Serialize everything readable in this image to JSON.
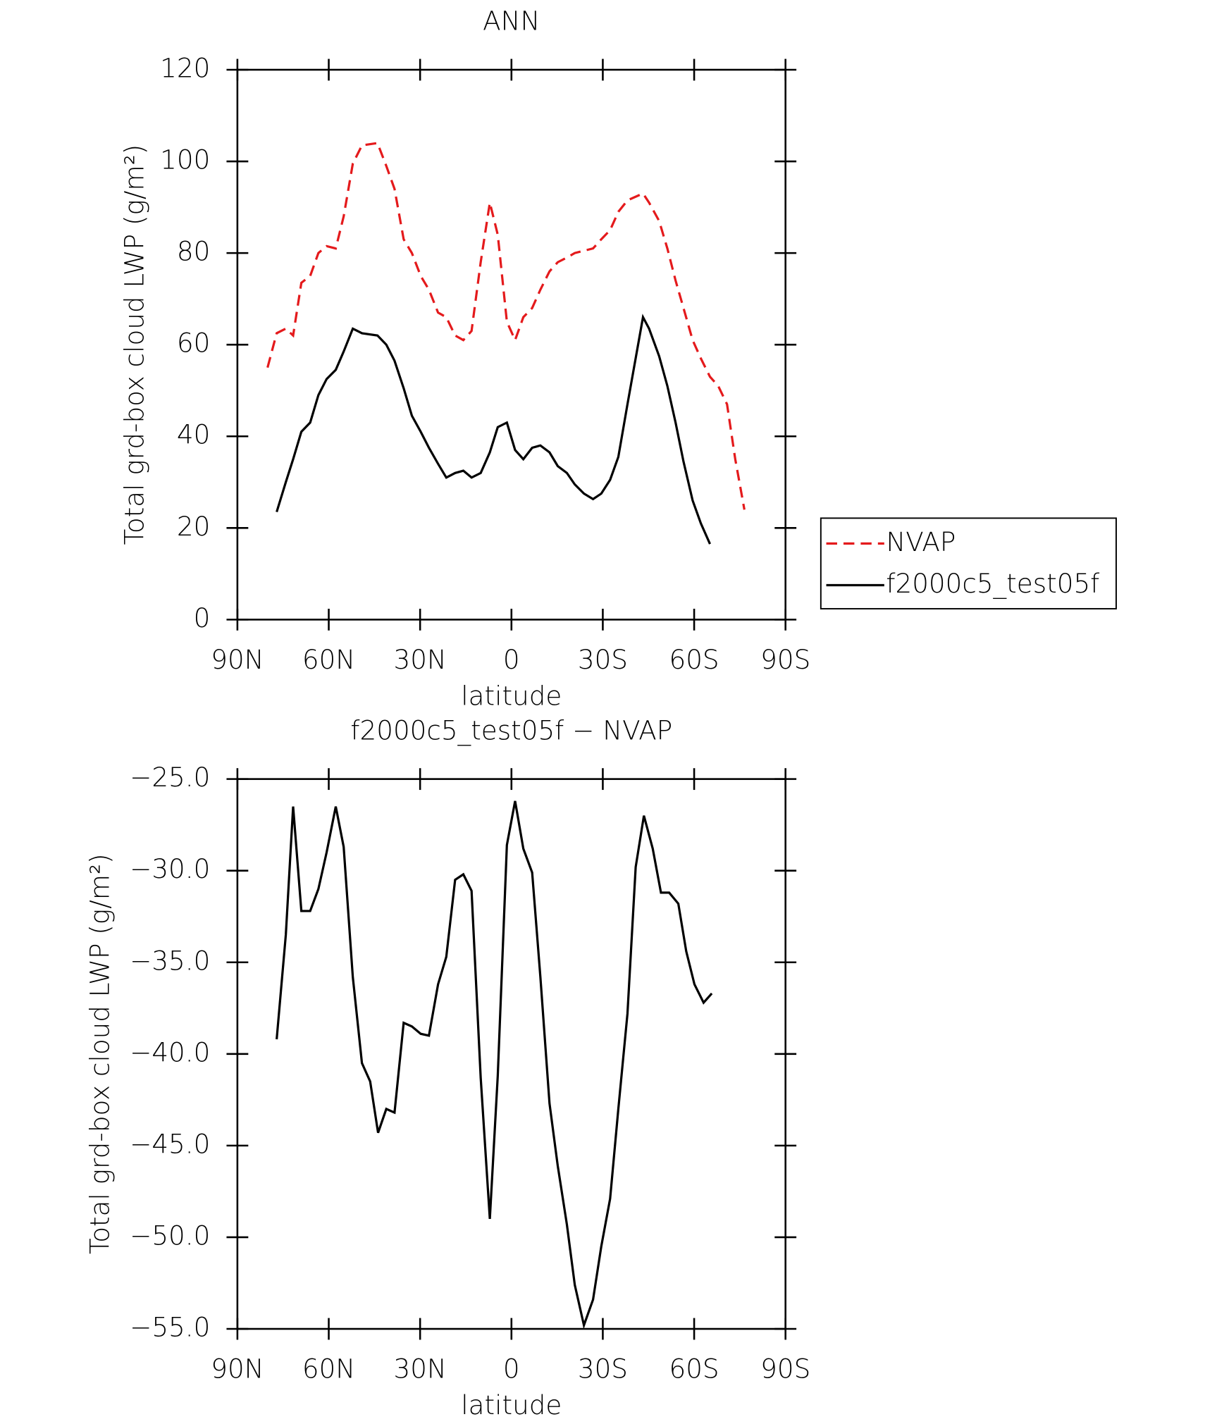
{
  "chart_data": [
    {
      "type": "line",
      "title": "ANN",
      "xlabel": "latitude",
      "ylabel": "Total grd-box cloud LWP (g/m²)",
      "x": [
        80.1,
        77.1,
        74.1,
        71.7,
        69.0,
        66.1,
        63.4,
        60.7,
        57.7,
        55.1,
        52.1,
        49.1,
        44.0,
        41.1,
        38.4,
        35.4,
        32.7,
        29.8,
        27.1,
        24.1,
        21.4,
        18.5,
        15.8,
        13.1,
        10.1,
        7.1,
        4.5,
        1.5,
        -1.2,
        -3.9,
        -6.8,
        -9.5,
        -12.5,
        -15.2,
        -18.2,
        -20.8,
        -23.8,
        -26.8,
        -29.5,
        -32.4,
        -35.1,
        -38.1,
        -43.2,
        -45.2,
        -48.5,
        -51.2,
        -53.9,
        -56.5,
        -59.5,
        -62.2,
        -65.2,
        -67.9,
        -70.8,
        -73.5,
        -76.5
      ],
      "series": [
        {
          "name": "NVAP",
          "color": "#e41a1c",
          "line_style": "dashed",
          "values": [
            55,
            62.5,
            63.5,
            62,
            73.5,
            75,
            80,
            81.5,
            81,
            88,
            99.5,
            103.5,
            104,
            99,
            94,
            83,
            80,
            75,
            72,
            67,
            66,
            62,
            61,
            63,
            78,
            91,
            84,
            65,
            61,
            66,
            68,
            72,
            76,
            78,
            79,
            80,
            80.5,
            81,
            83,
            85,
            89,
            91.5,
            93,
            91,
            87,
            81,
            74,
            68,
            61,
            57,
            53,
            51,
            47,
            35,
            24
          ]
        },
        {
          "name": "f2000c5_test05f",
          "color": "#000000",
          "line_style": "solid",
          "values": [
            null,
            23.5,
            30,
            35,
            41,
            43,
            49,
            52.5,
            54.5,
            58.5,
            63.5,
            62.5,
            62,
            60,
            56.5,
            50.5,
            44.5,
            41,
            37.5,
            34,
            31,
            32,
            32.5,
            31,
            32,
            36.5,
            42,
            43,
            37,
            35,
            37.5,
            38,
            36.5,
            33.5,
            32,
            29.5,
            27.5,
            26.3,
            27.5,
            30.5,
            35.5,
            47,
            66,
            63.5,
            57.5,
            51,
            43,
            34.5,
            26,
            21,
            16.5,
            null,
            null,
            null,
            null
          ]
        }
      ],
      "xlim": [
        90,
        -90
      ],
      "xticks": [
        {
          "value": 90,
          "label": "90N"
        },
        {
          "value": 60,
          "label": "60N"
        },
        {
          "value": 30,
          "label": "30N"
        },
        0,
        {
          "value": -30,
          "label": "30S"
        },
        {
          "value": -60,
          "label": "60S"
        },
        {
          "value": -90,
          "label": "90S"
        }
      ],
      "ylim": [
        0,
        120
      ],
      "yticks": [
        0,
        20,
        40,
        60,
        80,
        100,
        120
      ],
      "legend": "right"
    },
    {
      "type": "line",
      "title": "f2000c5_test05f − NVAP",
      "xlabel": "latitude",
      "ylabel": "Total grd-box cloud LWP (g/m²)",
      "x": [
        77.1,
        74.1,
        71.7,
        69.0,
        66.1,
        63.4,
        60.7,
        57.7,
        55.1,
        52.1,
        49.1,
        46.4,
        43.8,
        41.1,
        38.4,
        35.4,
        32.7,
        29.8,
        27.1,
        24.1,
        21.4,
        18.5,
        15.8,
        13.1,
        10.1,
        7.1,
        4.5,
        1.5,
        -1.2,
        -3.9,
        -6.8,
        -9.5,
        -12.5,
        -15.2,
        -18.2,
        -20.8,
        -23.8,
        -26.8,
        -29.5,
        -32.4,
        -35.1,
        -38.1,
        -40.8,
        -43.5,
        -46.4,
        -49.1,
        -51.8,
        -54.8,
        -57.4,
        -60.1,
        -63.1,
        -65.8
      ],
      "series": [
        {
          "name": "f2000c5_test05f − NVAP",
          "color": "#000000",
          "line_style": "solid",
          "values": [
            -39.2,
            -33.5,
            -26.5,
            -32.2,
            -32.2,
            -31,
            -29,
            -26.5,
            -28.7,
            -35.8,
            -40.5,
            -41.5,
            -44.3,
            -43,
            -43.2,
            -38.3,
            -38.5,
            -38.9,
            -39,
            -36.2,
            -34.7,
            -30.5,
            -30.2,
            -31.1,
            -41.3,
            -49,
            -41.2,
            -28.6,
            -26.2,
            -28.8,
            -30.1,
            -35.8,
            -42.7,
            -46.1,
            -49.3,
            -52.6,
            -54.8,
            -53.4,
            -50.5,
            -47.9,
            -43,
            -37.8,
            -29.8,
            -27,
            -28.8,
            -31.2,
            -31.2,
            -31.8,
            -34.4,
            -36.2,
            -37.2,
            -36.7
          ]
        }
      ],
      "xlim": [
        90,
        -90
      ],
      "xticks": [
        {
          "value": 90,
          "label": "90N"
        },
        {
          "value": 60,
          "label": "60N"
        },
        {
          "value": 30,
          "label": "30N"
        },
        0,
        {
          "value": -30,
          "label": "30S"
        },
        {
          "value": -60,
          "label": "60S"
        },
        {
          "value": -90,
          "label": "90S"
        }
      ],
      "ylim": [
        -55,
        -25
      ],
      "yticks": [
        {
          "value": -55,
          "label": "−55.0"
        },
        {
          "value": -50,
          "label": "−50.0"
        },
        {
          "value": -45,
          "label": "−45.0"
        },
        {
          "value": -40,
          "label": "−40.0"
        },
        {
          "value": -35,
          "label": "−35.0"
        },
        {
          "value": -30,
          "label": "−30.0"
        },
        {
          "value": -25,
          "label": "−25.0"
        }
      ]
    }
  ]
}
